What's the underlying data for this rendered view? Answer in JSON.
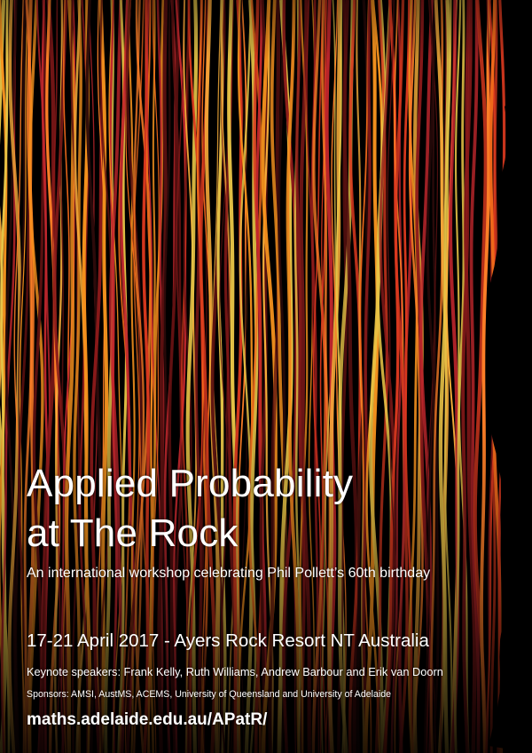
{
  "poster": {
    "title_line_1": "Applied Probability",
    "title_line_2": "at The Rock",
    "subtitle": "An international workshop celebrating Phil Pollett’s 60th birthday",
    "dates_venue": "17-21 April 2017 - Ayers Rock Resort NT Australia",
    "keynotes": "Keynote speakers: Frank Kelly, Ruth Williams, Andrew Barbour and Erik van Doorn",
    "sponsors": "Sponsors: AMSI, AustMS, ACEMS, University of Queensland and University of Adelaide",
    "url": "maths.adelaide.edu.au/APatR/"
  },
  "colors": {
    "background": "#000000",
    "text": "#ffffff",
    "stripe_palette": [
      "#d9381e",
      "#f26a1b",
      "#f7931e",
      "#fbb03b",
      "#c1272d",
      "#8b1a1a",
      "#ff7f27",
      "#e8c547",
      "#5a1010",
      "#2b0a0a"
    ]
  }
}
